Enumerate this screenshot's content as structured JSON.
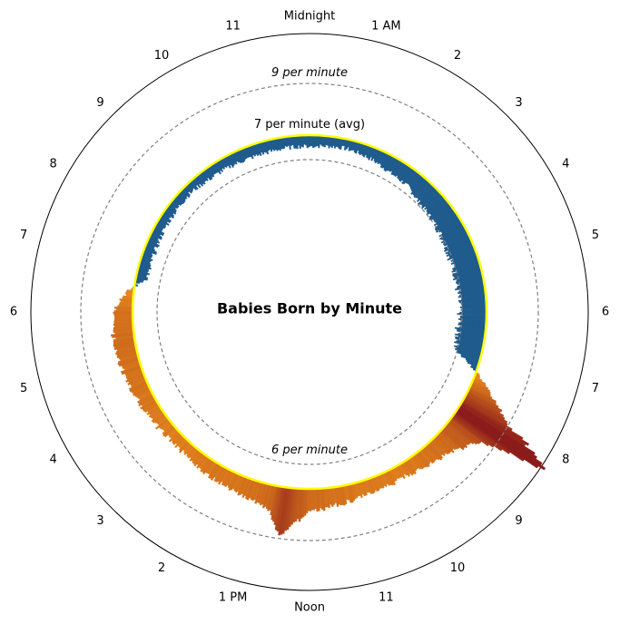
{
  "chart_data": {
    "type": "radial-area",
    "title": "Babies Born by Minute",
    "angular_axis": {
      "unit": "hour of day",
      "top_label": "Midnight",
      "bottom_label": "Noon",
      "tick_labels": [
        {
          "hour": 1,
          "label": "1 AM"
        },
        {
          "hour": 2,
          "label": "2"
        },
        {
          "hour": 3,
          "label": "3"
        },
        {
          "hour": 4,
          "label": "4"
        },
        {
          "hour": 5,
          "label": "5"
        },
        {
          "hour": 6,
          "label": "6"
        },
        {
          "hour": 7,
          "label": "7"
        },
        {
          "hour": 8,
          "label": "8"
        },
        {
          "hour": 9,
          "label": "9"
        },
        {
          "hour": 10,
          "label": "10"
        },
        {
          "hour": 11,
          "label": "11"
        },
        {
          "hour": 13,
          "label": "1 PM"
        },
        {
          "hour": 14,
          "label": "2"
        },
        {
          "hour": 15,
          "label": "3"
        },
        {
          "hour": 16,
          "label": "4"
        },
        {
          "hour": 17,
          "label": "5"
        },
        {
          "hour": 18,
          "label": "6"
        },
        {
          "hour": 19,
          "label": "7"
        },
        {
          "hour": 20,
          "label": "8"
        },
        {
          "hour": 21,
          "label": "9"
        },
        {
          "hour": 22,
          "label": "10"
        },
        {
          "hour": 23,
          "label": "11"
        }
      ]
    },
    "radial_axis": {
      "unit": "births per minute",
      "range": [
        4.8,
        10.2
      ],
      "reference_circles": [
        {
          "value": 9,
          "label": "9 per minute",
          "style": "dashed"
        },
        {
          "value": 7,
          "label": "7 per minute (avg)",
          "style": "yellow"
        },
        {
          "value": 6,
          "label": "6 per minute",
          "style": "dashed"
        }
      ]
    },
    "baseline": 7,
    "colors": {
      "above_avg_low": "#2a8c94",
      "above_avg_high": "#8b1a1a",
      "below_avg": "#1e5a8c",
      "orange": "#f0921c",
      "average_ring": "#ffff00",
      "reference_ring": "#808080"
    },
    "series": [
      {
        "hour": [
          0,
          0.25,
          0.5,
          0.75,
          1,
          1.5,
          2,
          2.5,
          3,
          3.5,
          4,
          4.5,
          5,
          5.5,
          6,
          6.5,
          7,
          7.5,
          7.75,
          8,
          8.25,
          8.5,
          9,
          9.5,
          10,
          10.5,
          11,
          11.5,
          12,
          12.25,
          12.5,
          12.75,
          13,
          13.5,
          14,
          15,
          16,
          17,
          17.5,
          18,
          18.25,
          18.5,
          18.75,
          19,
          19.25,
          19.5,
          20,
          20.5,
          21,
          21.5,
          22,
          22.5,
          23,
          23.5,
          23.75
        ],
        "births_per_minute": [
          6.55,
          6.57,
          6.6,
          6.62,
          6.6,
          6.5,
          6.35,
          6.3,
          6.1,
          6.05,
          6.0,
          5.95,
          5.95,
          5.92,
          5.95,
          5.9,
          6.0,
          7.55,
          8.2,
          9.1,
          9.9,
          8.4,
          7.8,
          7.65,
          7.5,
          7.55,
          7.6,
          7.7,
          7.9,
          8.3,
          8.95,
          8.0,
          7.8,
          7.7,
          7.6,
          7.45,
          7.6,
          7.75,
          7.8,
          7.75,
          7.5,
          7.1,
          6.6,
          6.5,
          6.55,
          6.55,
          6.6,
          6.62,
          6.65,
          6.57,
          6.55,
          6.52,
          6.52,
          6.55,
          6.55
        ]
      }
    ]
  }
}
